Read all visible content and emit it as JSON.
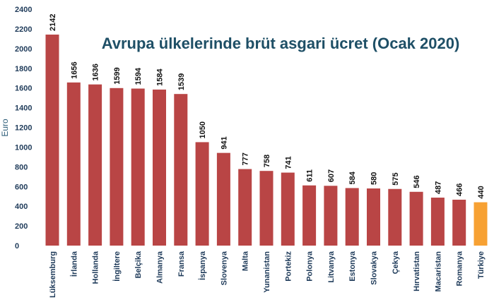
{
  "chart_data": {
    "type": "bar",
    "title": "Avrupa ülkelerinde brüt asgari ücret (Ocak 2020)",
    "ylabel": "Euro",
    "xlabel": "",
    "ylim": [
      0,
      2400
    ],
    "yticks": [
      0,
      200,
      400,
      600,
      800,
      1000,
      1200,
      1400,
      1600,
      1800,
      2000,
      2200,
      2400
    ],
    "grid": false,
    "categories": [
      "Lüksemburg",
      "İrlanda",
      "Hollanda",
      "İngiltere",
      "Belçika",
      "Almanya",
      "Fransa",
      "İspanya",
      "Slovenya",
      "Malta",
      "Yunanistan",
      "Portekiz",
      "Polonya",
      "Litvanya",
      "Estonya",
      "Slovakya",
      "Çekya",
      "Hırvatistan",
      "Macaristan",
      "Romanya",
      "Türkiye"
    ],
    "values": [
      2142,
      1656,
      1636,
      1599,
      1594,
      1584,
      1539,
      1050,
      941,
      777,
      758,
      741,
      611,
      607,
      584,
      580,
      575,
      546,
      487,
      466,
      440
    ],
    "highlight_category": "Türkiye",
    "colors": {
      "bar": "#b94545",
      "highlight": "#f7a133",
      "title": "#1e4f66",
      "axis_text": "#1f3b5a"
    }
  }
}
